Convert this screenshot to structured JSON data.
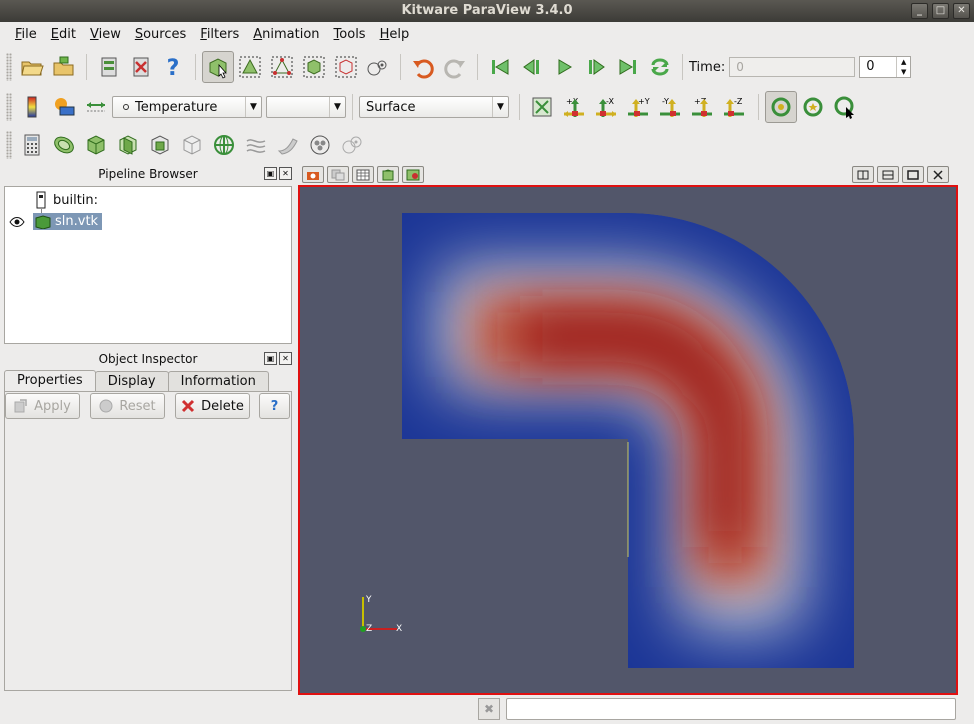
{
  "window": {
    "title": "Kitware ParaView 3.4.0"
  },
  "menu": [
    {
      "label": "File",
      "ul": "F",
      "rest": "ile"
    },
    {
      "label": "Edit",
      "ul": "E",
      "rest": "dit"
    },
    {
      "label": "View",
      "ul": "V",
      "rest": "iew"
    },
    {
      "label": "Sources",
      "ul": "S",
      "rest": "ources"
    },
    {
      "label": "Filters",
      "ul": "F",
      "rest": "ilters"
    },
    {
      "label": "Animation",
      "ul": "A",
      "rest": "nimation"
    },
    {
      "label": "Tools",
      "ul": "T",
      "rest": "ools"
    },
    {
      "label": "Help",
      "ul": "H",
      "rest": "elp"
    }
  ],
  "toolbar1": {
    "time_label": "Time:",
    "time_value_placeholder": "0",
    "timestep_value": "0"
  },
  "toolbar2": {
    "color_by": "Temperature",
    "component": "",
    "representation": "Surface",
    "camera_buttons": [
      "+X",
      "-X",
      "+Y",
      "-Y",
      "+Z",
      "-Z"
    ]
  },
  "pipeline_browser": {
    "title": "Pipeline Browser",
    "items": [
      {
        "label": "builtin:",
        "icon": "server-icon"
      },
      {
        "label": "sln.vtk",
        "icon": "dataset-icon",
        "selected": true
      }
    ]
  },
  "object_inspector": {
    "title": "Object Inspector",
    "tabs": [
      "Properties",
      "Display",
      "Information"
    ],
    "active_tab": "Properties",
    "buttons": {
      "apply": "Apply",
      "reset": "Reset",
      "delete": "Delete",
      "help": "?"
    }
  },
  "render_view": {
    "axes": {
      "x": "X",
      "y": "Y",
      "z": "Z"
    },
    "background": "#52566a",
    "colormap": [
      "#2136a0",
      "#ddd8d3",
      "#8f1016"
    ]
  },
  "colors": {
    "accent_red": "#e01010",
    "selection": "#7d97b5"
  }
}
